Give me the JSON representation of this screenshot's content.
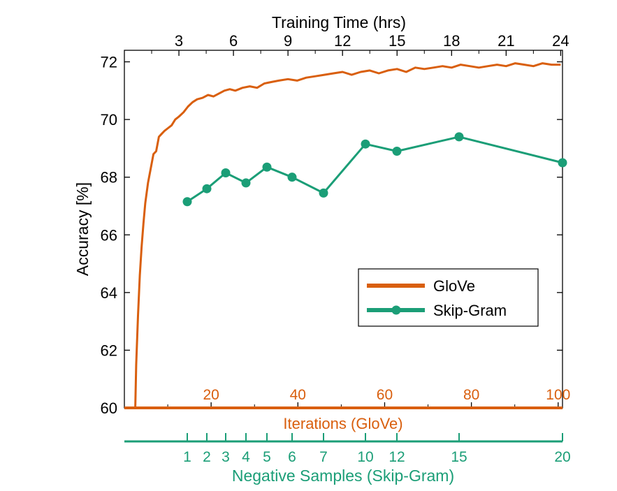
{
  "chart_data": {
    "type": "line",
    "ylabel": "Accuracy [%]",
    "ylim": [
      60,
      72.4
    ],
    "yticks": [
      60,
      62,
      64,
      66,
      68,
      70,
      72
    ],
    "grid": false,
    "legend": {
      "placement": "lower-right",
      "entries": [
        "GloVe",
        "Skip-Gram"
      ]
    },
    "colors": {
      "glove": "#D95F0E",
      "skipgram": "#1B9E77",
      "axis": "#000000"
    },
    "top_axis": {
      "label": "Training Time (hrs)",
      "ticks": [
        "3",
        "6",
        "9",
        "12",
        "15",
        "18",
        "21",
        "24"
      ],
      "values": [
        3,
        6,
        9,
        12,
        15,
        18,
        21,
        24
      ]
    },
    "glove_axis": {
      "label": "Iterations (GloVe)",
      "ticks": [
        "20",
        "40",
        "60",
        "80",
        "100"
      ],
      "values": [
        20,
        40,
        60,
        80,
        100
      ]
    },
    "skipgram_axis": {
      "label": "Negative Samples (Skip-Gram)",
      "ticks": [
        "1",
        "2",
        "3",
        "4",
        "5",
        "6",
        "7",
        "10",
        "12",
        "15",
        "20"
      ],
      "values": [
        1,
        2,
        3,
        4,
        5,
        6,
        7,
        10,
        12,
        15,
        20
      ]
    },
    "series": [
      {
        "name": "GloVe",
        "x_unit": "Training Time (hrs)",
        "x": [
          0.6,
          0.65,
          0.75,
          0.85,
          0.95,
          1.05,
          1.15,
          1.3,
          1.45,
          1.6,
          1.75,
          1.9,
          2.05,
          2.2,
          2.4,
          2.6,
          2.8,
          3.0,
          3.25,
          3.5,
          3.75,
          4.0,
          4.3,
          4.6,
          4.9,
          5.2,
          5.5,
          5.8,
          6.1,
          6.5,
          6.9,
          7.3,
          7.7,
          8.1,
          8.5,
          9.0,
          9.5,
          10.0,
          10.5,
          11.0,
          11.5,
          12.0,
          12.5,
          13.0,
          13.5,
          14.0,
          14.5,
          15.0,
          15.5,
          16.0,
          16.5,
          17.0,
          17.5,
          18.0,
          18.5,
          19.0,
          19.5,
          20.0,
          20.5,
          21.0,
          21.5,
          22.0,
          22.5,
          23.0,
          23.5,
          24.0
        ],
        "values": [
          60.0,
          61.5,
          63.2,
          64.6,
          65.6,
          66.4,
          67.1,
          67.8,
          68.3,
          68.8,
          68.9,
          69.4,
          69.5,
          69.6,
          69.7,
          69.8,
          70.0,
          70.1,
          70.25,
          70.45,
          70.6,
          70.7,
          70.75,
          70.85,
          70.8,
          70.9,
          71.0,
          71.05,
          71.0,
          71.1,
          71.15,
          71.1,
          71.25,
          71.3,
          71.35,
          71.4,
          71.35,
          71.45,
          71.5,
          71.55,
          71.6,
          71.65,
          71.55,
          71.65,
          71.7,
          71.6,
          71.7,
          71.75,
          71.65,
          71.8,
          71.75,
          71.8,
          71.85,
          71.8,
          71.9,
          71.85,
          71.8,
          71.85,
          71.9,
          71.85,
          71.95,
          71.9,
          71.85,
          71.95,
          71.9,
          71.9
        ]
      },
      {
        "name": "Skip-Gram",
        "x_unit": "Negative Samples (Skip-Gram)",
        "x": [
          1,
          2,
          3,
          4,
          5,
          6,
          7,
          10,
          12,
          15,
          20
        ],
        "values": [
          67.15,
          67.6,
          68.15,
          67.8,
          68.35,
          68.0,
          67.45,
          69.15,
          68.9,
          69.4,
          68.5
        ]
      }
    ]
  }
}
